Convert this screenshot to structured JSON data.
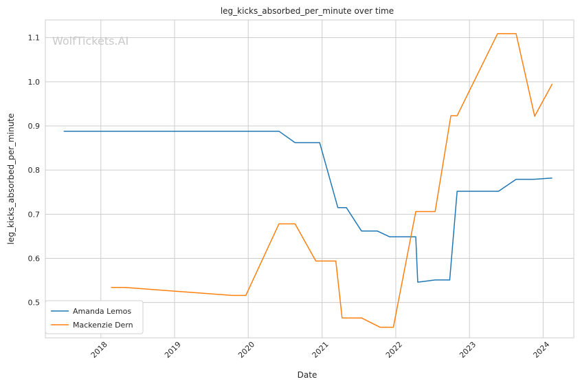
{
  "chart_data": {
    "type": "line",
    "title": "leg_kicks_absorbed_per_minute over time",
    "xlabel": "Date",
    "ylabel": "leg_kicks_absorbed_per_minute",
    "watermark": "WolfTickets.AI",
    "x_tick_labels": [
      "2018",
      "2019",
      "2020",
      "2021",
      "2022",
      "2023",
      "2024"
    ],
    "y_tick_labels": [
      "0.5",
      "0.6",
      "0.7",
      "0.8",
      "0.9",
      "1.0",
      "1.1"
    ],
    "xlim": [
      "2017-04-01",
      "2024-06-01"
    ],
    "ylim": [
      0.42,
      1.14
    ],
    "grid": true,
    "legend_position": "lower-left",
    "series": [
      {
        "name": "Amanda Lemos",
        "color": "#1f77b4",
        "points": [
          [
            "2017-07-01",
            0.888
          ],
          [
            "2020-06-01",
            0.888
          ],
          [
            "2020-08-20",
            0.862
          ],
          [
            "2020-12-20",
            0.862
          ],
          [
            "2021-03-20",
            0.715
          ],
          [
            "2021-05-01",
            0.715
          ],
          [
            "2021-07-15",
            0.662
          ],
          [
            "2021-10-01",
            0.662
          ],
          [
            "2021-12-01",
            0.649
          ],
          [
            "2022-04-10",
            0.649
          ],
          [
            "2022-04-20",
            0.546
          ],
          [
            "2022-07-15",
            0.551
          ],
          [
            "2022-09-25",
            0.551
          ],
          [
            "2022-11-01",
            0.752
          ],
          [
            "2023-05-25",
            0.752
          ],
          [
            "2023-08-20",
            0.779
          ],
          [
            "2023-11-15",
            0.779
          ],
          [
            "2024-02-15",
            0.782
          ]
        ]
      },
      {
        "name": "Mackenzie Dern",
        "color": "#ff7f0e",
        "points": [
          [
            "2018-02-20",
            0.534
          ],
          [
            "2018-05-01",
            0.534
          ],
          [
            "2019-10-15",
            0.516
          ],
          [
            "2019-12-20",
            0.516
          ],
          [
            "2020-06-01",
            0.678
          ],
          [
            "2020-08-20",
            0.678
          ],
          [
            "2020-12-01",
            0.594
          ],
          [
            "2021-03-10",
            0.594
          ],
          [
            "2021-04-10",
            0.465
          ],
          [
            "2021-07-15",
            0.465
          ],
          [
            "2021-10-15",
            0.444
          ],
          [
            "2021-12-20",
            0.444
          ],
          [
            "2022-04-10",
            0.706
          ],
          [
            "2022-07-15",
            0.706
          ],
          [
            "2022-10-01",
            0.923
          ],
          [
            "2022-11-01",
            0.923
          ],
          [
            "2023-05-20",
            1.109
          ],
          [
            "2023-08-20",
            1.109
          ],
          [
            "2023-11-20",
            0.922
          ],
          [
            "2024-02-15",
            0.995
          ]
        ]
      }
    ]
  }
}
